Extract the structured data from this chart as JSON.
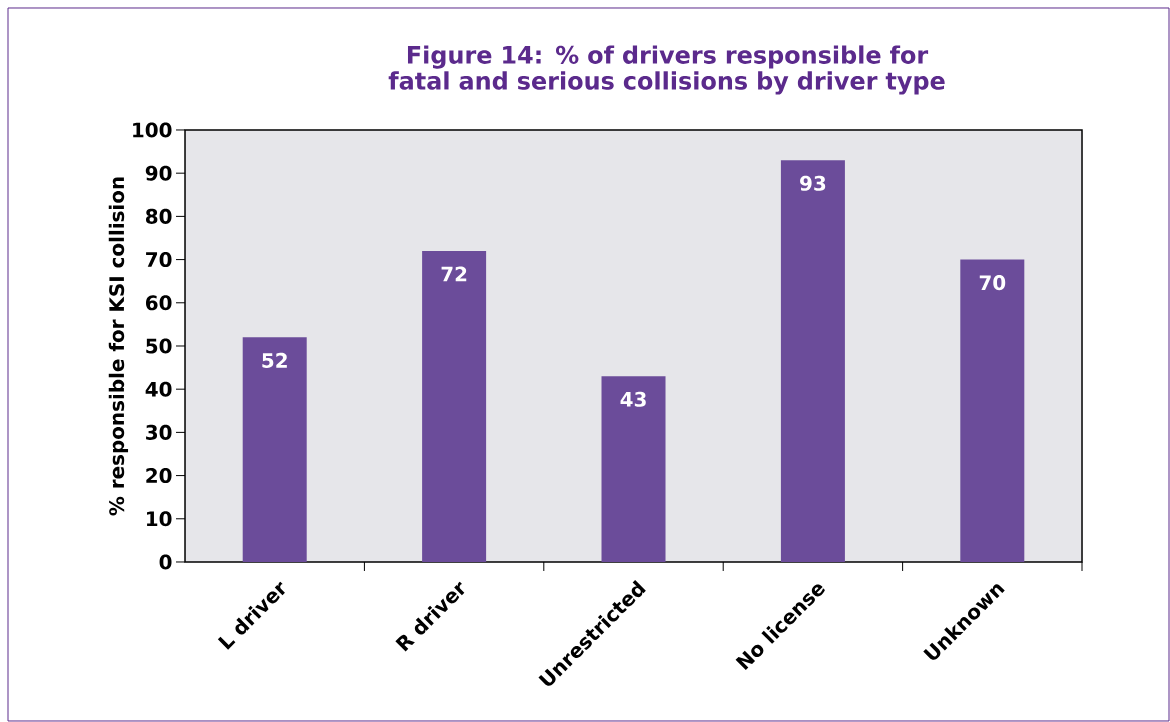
{
  "chart_data": {
    "type": "bar",
    "title": "Figure 14: % of drivers responsible for fatal and serious collisions by driver type",
    "ylabel": "% responsible for KSI collision",
    "categories": [
      "L driver",
      "R driver",
      "Unrestricted",
      "No license",
      "Unknown"
    ],
    "values": [
      52,
      72,
      43,
      93,
      70
    ],
    "color": "#6b4c9a",
    "ylim": [
      0,
      100
    ],
    "yticks": [
      0,
      10,
      20,
      30,
      40,
      50,
      60,
      70,
      80,
      90,
      100
    ],
    "data_labels": true,
    "grid": false
  }
}
